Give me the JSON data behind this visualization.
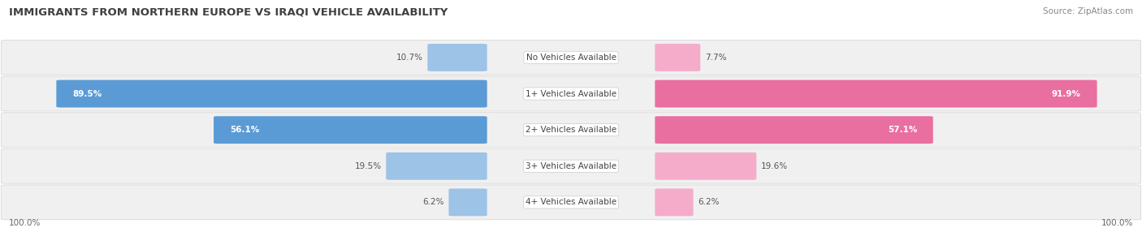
{
  "title": "IMMIGRANTS FROM NORTHERN EUROPE VS IRAQI VEHICLE AVAILABILITY",
  "source": "Source: ZipAtlas.com",
  "categories": [
    "No Vehicles Available",
    "1+ Vehicles Available",
    "2+ Vehicles Available",
    "3+ Vehicles Available",
    "4+ Vehicles Available"
  ],
  "northern_europe_values": [
    10.7,
    89.5,
    56.1,
    19.5,
    6.2
  ],
  "iraqi_values": [
    7.7,
    91.9,
    57.1,
    19.6,
    6.2
  ],
  "blue_dark": "#5b9bd5",
  "blue_light": "#9dc3e6",
  "pink_dark": "#e96fa0",
  "pink_light": "#f4acca",
  "row_bg_odd": "#f2f2f2",
  "row_bg_even": "#ebebeb",
  "title_color": "#404040",
  "source_color": "#888888",
  "label_dark": "#ffffff",
  "label_light": "#555555",
  "center_label_color": "#444444",
  "bottom_label_color": "#666666"
}
